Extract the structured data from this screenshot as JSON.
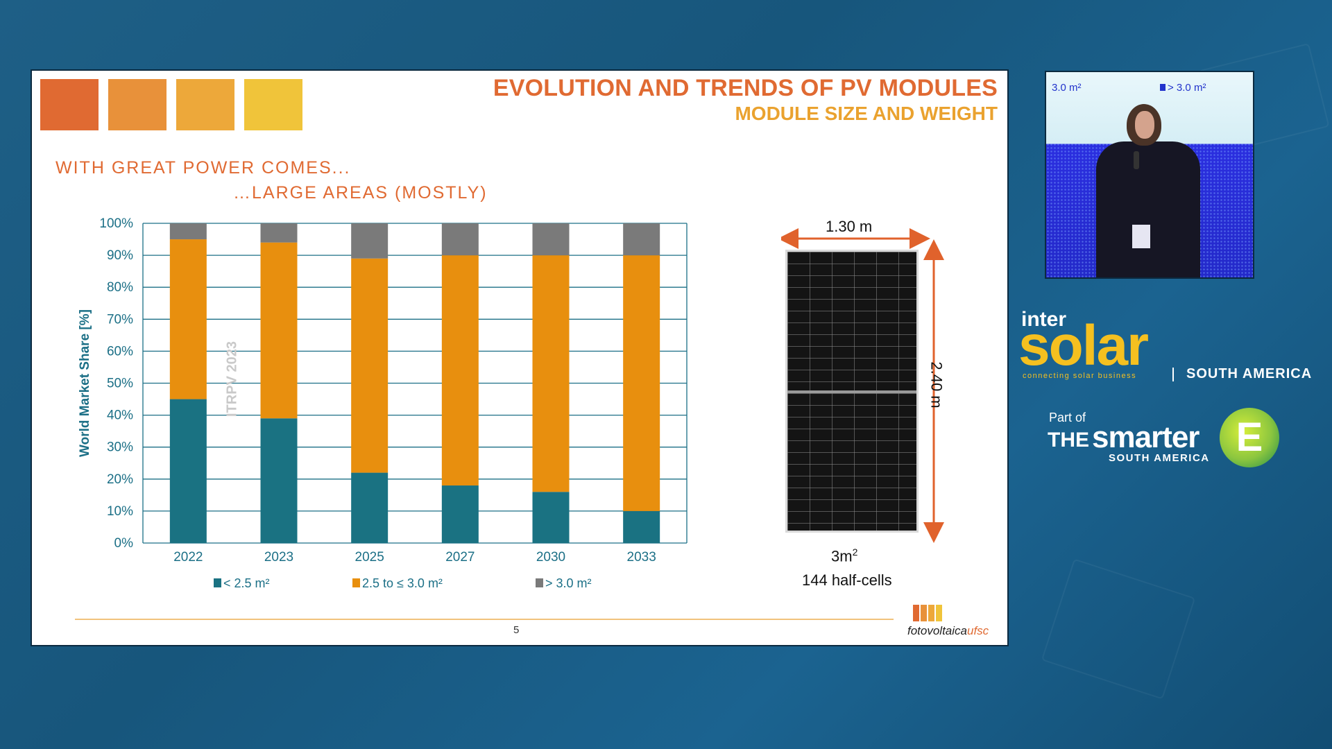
{
  "slide": {
    "title": "EVOLUTION AND TRENDS OF PV MODULES",
    "subtitle": "MODULE SIZE AND WEIGHT",
    "tagline_1": "WITH GREAT POWER COMES...",
    "tagline_2": "…LARGE AREAS (MOSTLY)",
    "header_colors": [
      "#e06a32",
      "#e8913a",
      "#eda83a",
      "#f0c43a"
    ],
    "page_number": "5",
    "logo_text_1": "fotovoltaica",
    "logo_text_2": "ufsc",
    "logo_colors": [
      "#e06a32",
      "#e8913a",
      "#eda83a",
      "#f0c43a"
    ]
  },
  "chart_data": {
    "type": "bar",
    "stacked": true,
    "categories": [
      "2022",
      "2023",
      "2025",
      "2027",
      "2030",
      "2033"
    ],
    "series": [
      {
        "name": "< 2.5 m²",
        "color": "#1a7282",
        "values": [
          45,
          39,
          22,
          18,
          16,
          10
        ]
      },
      {
        "name": "2.5 to ≤ 3.0 m²",
        "color": "#e88f0e",
        "values": [
          50,
          55,
          67,
          72,
          74,
          80
        ]
      },
      {
        "name": "> 3.0 m²",
        "color": "#7a7a7a",
        "values": [
          5,
          6,
          11,
          10,
          10,
          10
        ]
      }
    ],
    "ylabel": "World Market Share [%]",
    "ylim": [
      0,
      100
    ],
    "yticks": [
      "0%",
      "10%",
      "20%",
      "30%",
      "40%",
      "50%",
      "60%",
      "70%",
      "80%",
      "90%",
      "100%"
    ],
    "annotation": "ITRPV 2023",
    "grid": true,
    "legend_position": "bottom"
  },
  "panel": {
    "width_label": "1.30 m",
    "height_label": "2.40 m",
    "area_label": "3m",
    "area_sup": "2",
    "cells_label": "144 half-cells"
  },
  "video": {
    "legend_left": "3.0 m²",
    "legend_right": "> 3.0 m²"
  },
  "branding": {
    "inter": "inter",
    "solar": "solar",
    "tagline": "connecting solar business",
    "region": "SOUTH AMERICA",
    "part_of": "Part of",
    "smarter_the": "THE",
    "smarter_word": "smarter",
    "smarter_e": "E",
    "smarter_region": "SOUTH AMERICA"
  }
}
